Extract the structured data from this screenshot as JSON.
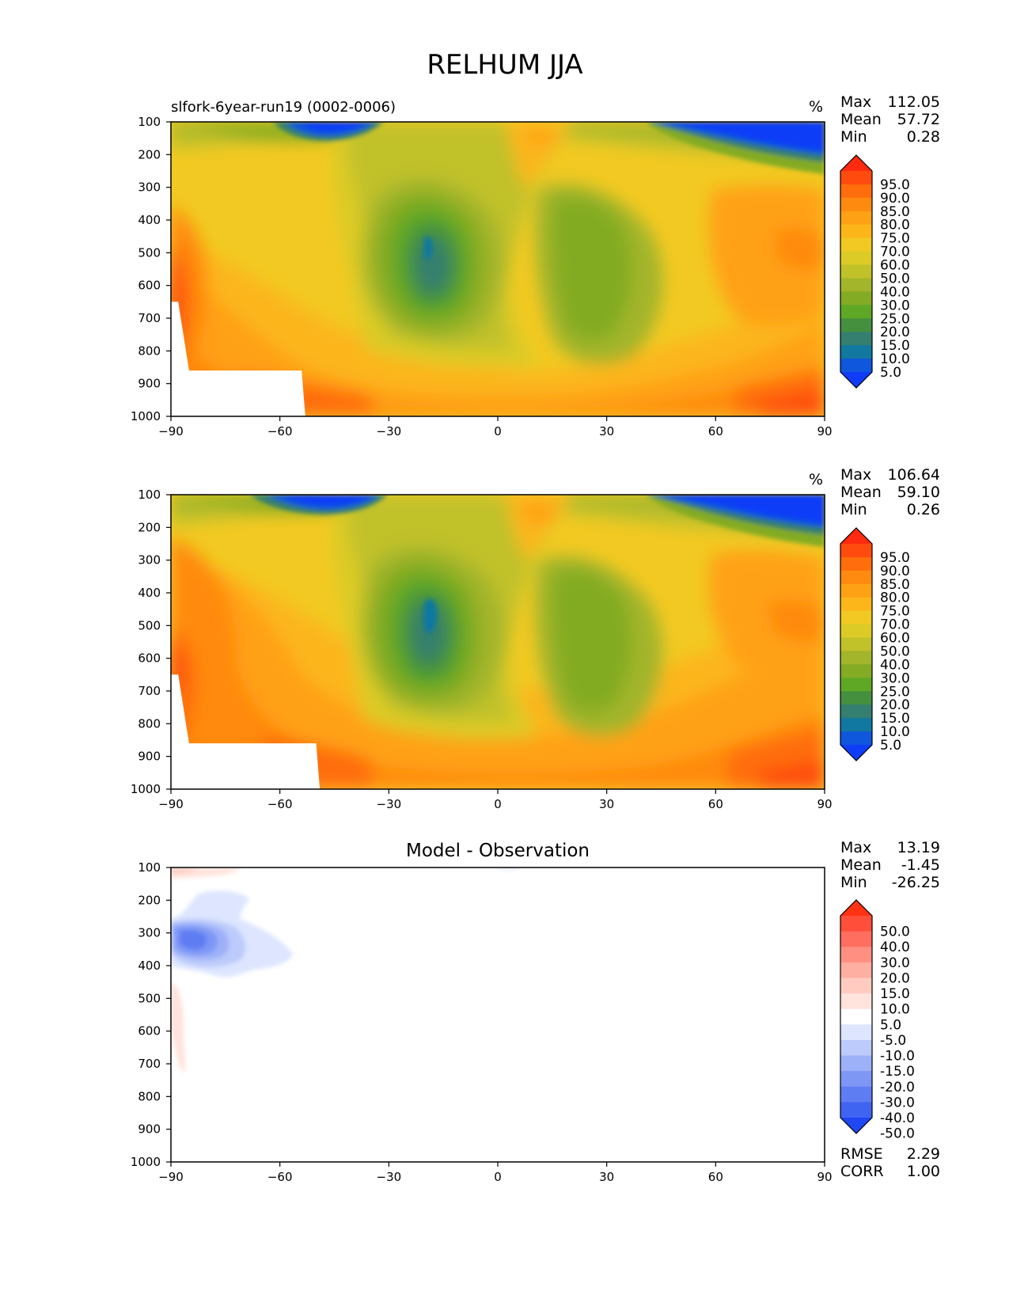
{
  "figure": {
    "title": "RELHUM JJA"
  },
  "chart_data": [
    {
      "type": "heatmap",
      "id": "test",
      "title": "",
      "subtitle": "slfork-6year-run19 (0002-0006)",
      "units": "%",
      "x_ticks": [
        "−90",
        "−60",
        "−30",
        "0",
        "30",
        "60",
        "90"
      ],
      "y_ticks": [
        "100",
        "200",
        "300",
        "400",
        "500",
        "600",
        "700",
        "800",
        "900",
        "1000"
      ],
      "xlim": [
        -90,
        90
      ],
      "ylim": [
        100,
        1000
      ],
      "stats": [
        {
          "label": "Max",
          "value": "112.05"
        },
        {
          "label": "Mean",
          "value": "57.72"
        },
        {
          "label": "Min",
          "value": "0.28"
        }
      ],
      "colorbar": {
        "labels": [
          "95.0",
          "90.0",
          "85.0",
          "80.0",
          "75.0",
          "70.0",
          "60.0",
          "50.0",
          "40.0",
          "30.0",
          "25.0",
          "20.0",
          "15.0",
          "10.0",
          "5.0"
        ],
        "colors": [
          "#ff2a0f",
          "#ff4b0e",
          "#ff6d0c",
          "#ff8a10",
          "#ffa114",
          "#fcb61a",
          "#f2c922",
          "#dccb26",
          "#c1c12a",
          "#a3b52a",
          "#83ab24",
          "#5ea825",
          "#44903e",
          "#357f70",
          "#1178a0",
          "#0f57dc",
          "#0f3df7"
        ]
      },
      "terrain_mask": [
        [
          -90,
          650
        ],
        [
          -88,
          650
        ],
        [
          -85,
          860
        ],
        [
          -54,
          860
        ],
        [
          -53,
          1000
        ],
        [
          -90,
          1000
        ]
      ]
    },
    {
      "type": "heatmap",
      "id": "reference",
      "title": "",
      "subtitle": "",
      "units": "%",
      "x_ticks": [
        "−90",
        "−60",
        "−30",
        "0",
        "30",
        "60",
        "90"
      ],
      "y_ticks": [
        "100",
        "200",
        "300",
        "400",
        "500",
        "600",
        "700",
        "800",
        "900",
        "1000"
      ],
      "xlim": [
        -90,
        90
      ],
      "ylim": [
        100,
        1000
      ],
      "stats": [
        {
          "label": "Max",
          "value": "106.64"
        },
        {
          "label": "Mean",
          "value": "59.10"
        },
        {
          "label": "Min",
          "value": "0.26"
        }
      ],
      "colorbar": {
        "labels": [
          "95.0",
          "90.0",
          "85.0",
          "80.0",
          "75.0",
          "70.0",
          "60.0",
          "50.0",
          "40.0",
          "30.0",
          "25.0",
          "20.0",
          "15.0",
          "10.0",
          "5.0"
        ],
        "colors": [
          "#ff2a0f",
          "#ff4b0e",
          "#ff6d0c",
          "#ff8a10",
          "#ffa114",
          "#fcb61a",
          "#f2c922",
          "#dccb26",
          "#c1c12a",
          "#a3b52a",
          "#83ab24",
          "#5ea825",
          "#44903e",
          "#357f70",
          "#1178a0",
          "#0f57dc",
          "#0f3df7"
        ]
      },
      "terrain_mask": [
        [
          -90,
          650
        ],
        [
          -88,
          650
        ],
        [
          -85,
          860
        ],
        [
          -50,
          860
        ],
        [
          -49,
          1000
        ],
        [
          -90,
          1000
        ]
      ]
    },
    {
      "type": "heatmap",
      "id": "difference",
      "title": "Model - Observation",
      "subtitle": "",
      "units": "",
      "x_ticks": [
        "−90",
        "−60",
        "−30",
        "0",
        "30",
        "60",
        "90"
      ],
      "y_ticks": [
        "100",
        "200",
        "300",
        "400",
        "500",
        "600",
        "700",
        "800",
        "900",
        "1000"
      ],
      "xlim": [
        -90,
        90
      ],
      "ylim": [
        100,
        1000
      ],
      "stats": [
        {
          "label": "Max",
          "value": "13.19"
        },
        {
          "label": "Mean",
          "value": "-1.45"
        },
        {
          "label": "Min",
          "value": "-26.25"
        }
      ],
      "metrics": [
        {
          "label": "RMSE",
          "value": "2.29"
        },
        {
          "label": "CORR",
          "value": "1.00"
        }
      ],
      "colorbar": {
        "labels": [
          "50.0",
          "40.0",
          "30.0",
          "20.0",
          "15.0",
          "10.0",
          "5.0",
          "-5.0",
          "-10.0",
          "-15.0",
          "-20.0",
          "-30.0",
          "-40.0",
          "-50.0"
        ],
        "colors": [
          "#ff3214",
          "#ff4f3a",
          "#ff6e5e",
          "#ff8f80",
          "#ffaea2",
          "#ffcbc1",
          "#ffe3dc",
          "#ffffff",
          "#dde5ff",
          "#bccbfb",
          "#9db1f8",
          "#7e97f5",
          "#5f7df3",
          "#4064f2",
          "#1f47f2"
        ]
      }
    }
  ]
}
